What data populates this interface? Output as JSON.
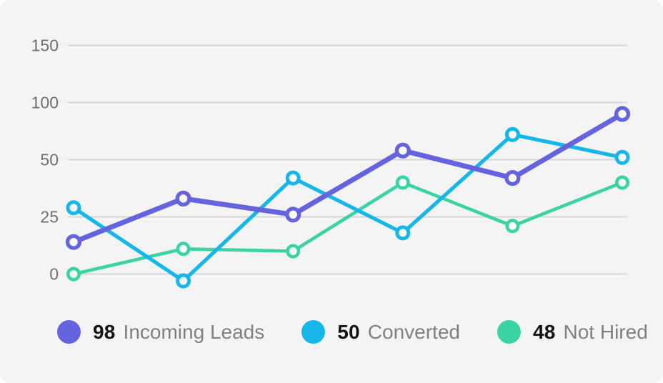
{
  "card": {
    "background_color": "#f4f4f5",
    "page_background_color": "#ffffff",
    "gridline_color": "#d7d6d6",
    "tick_text_color": "#6f6f6f",
    "legend_number_color": "#141414",
    "legend_label_color": "#7f8084",
    "marker_fill_color": "#fcfcfd"
  },
  "chart_data": {
    "type": "line",
    "title": "",
    "xlabel": "",
    "ylabel": "",
    "grid": true,
    "legend_position": "bottom",
    "x": [
      1,
      2,
      3,
      4,
      5,
      6
    ],
    "y_axis": {
      "tick_labels": [
        "150",
        "100",
        "50",
        "25",
        "0"
      ],
      "ticks_ascending": [
        0,
        25,
        50,
        100,
        150
      ],
      "note": "non-linear axis: ticks are equally spaced on screen"
    },
    "series": [
      {
        "name": "Incoming Leads",
        "slug": "incoming-leads",
        "legend_value": "98",
        "color": "#6663de",
        "values": [
          14,
          33,
          26,
          58,
          42,
          90
        ]
      },
      {
        "name": "Converted",
        "slug": "converted",
        "legend_value": "50",
        "color": "#16b6ea",
        "values": [
          29,
          -3,
          42,
          18,
          72,
          52
        ]
      },
      {
        "name": "Not Hired",
        "slug": "not-hired",
        "legend_value": "48",
        "color": "#3bd2a4",
        "values": [
          0,
          11,
          10,
          40,
          21,
          40
        ]
      }
    ]
  }
}
